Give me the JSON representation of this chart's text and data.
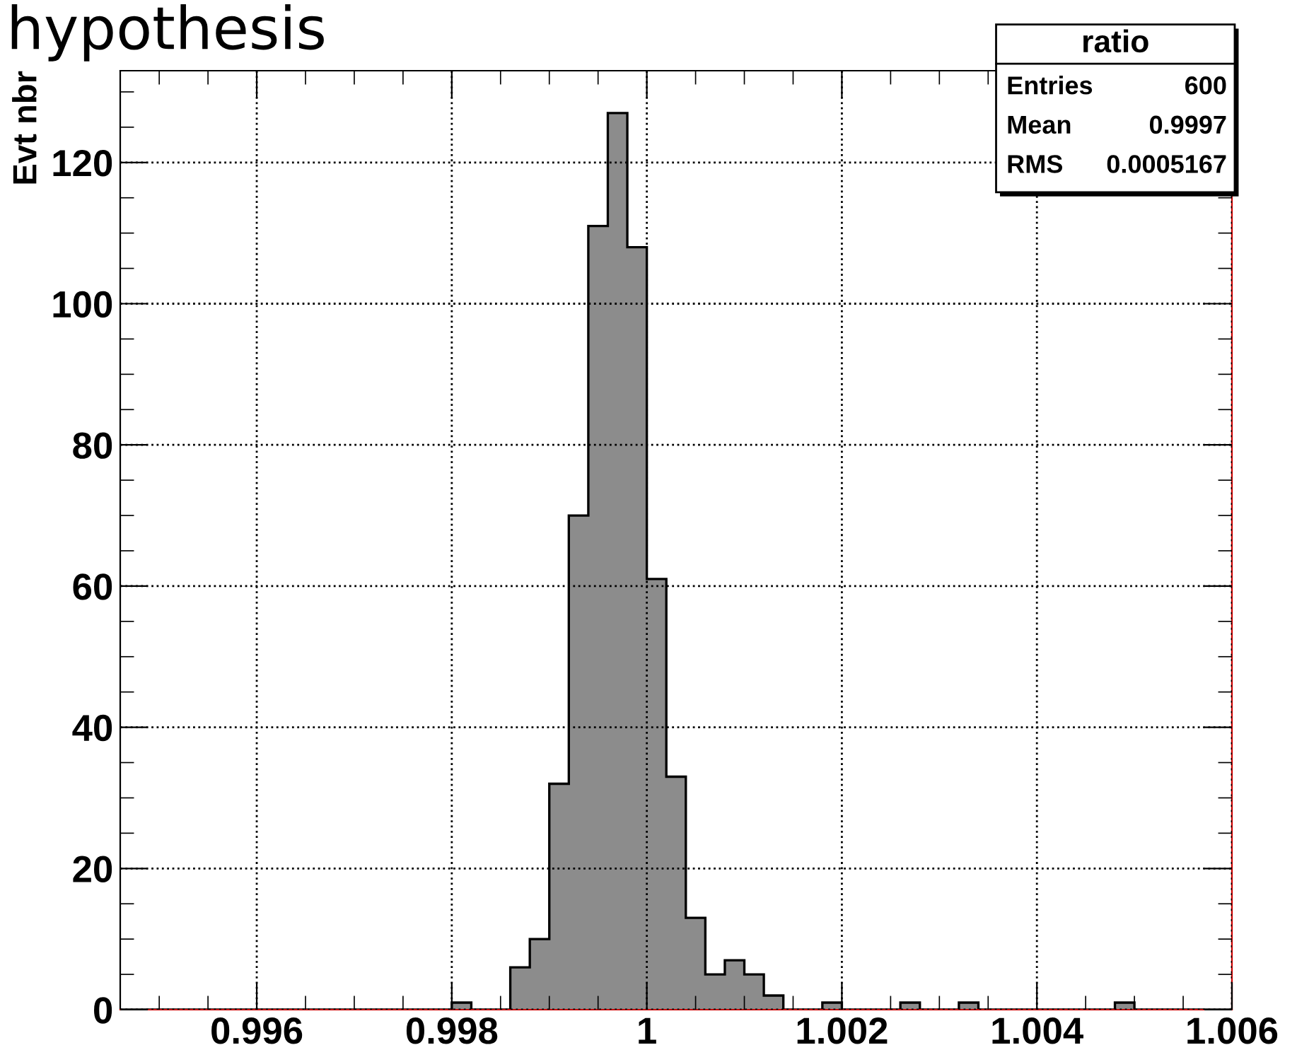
{
  "chart_data": {
    "type": "histogram",
    "title": "hypothesis",
    "ylabel": "Evt nbr",
    "bins": [
      0.9946,
      0.9948,
      0.995,
      0.9952,
      0.9954,
      0.9956,
      0.9958,
      0.996,
      0.9962,
      0.9964,
      0.9966,
      0.9968,
      0.997,
      0.9972,
      0.9974,
      0.9976,
      0.9978,
      0.998,
      0.9982,
      0.9984,
      0.9986,
      0.9988,
      0.999,
      0.9992,
      0.9994,
      0.9996,
      0.9998,
      1.0,
      1.0002,
      1.0004,
      1.0006,
      1.0008,
      1.001,
      1.0012,
      1.0014,
      1.0016,
      1.0018,
      1.002,
      1.0022,
      1.0024,
      1.0026,
      1.0028,
      1.003,
      1.0032,
      1.0034,
      1.0036,
      1.0038,
      1.004,
      1.0042,
      1.0044,
      1.0046,
      1.0048,
      1.005,
      1.0052,
      1.0054,
      1.0056,
      1.0058,
      1.006
    ],
    "values": [
      0,
      0,
      0,
      0,
      0,
      0,
      0,
      0,
      0,
      0,
      0,
      0,
      0,
      0,
      0,
      0,
      0,
      1,
      0,
      0,
      6,
      10,
      32,
      70,
      111,
      127,
      108,
      61,
      33,
      13,
      5,
      7,
      5,
      2,
      0,
      0,
      1,
      0,
      0,
      0,
      1,
      0,
      0,
      1,
      0,
      0,
      0,
      0,
      0,
      0,
      0,
      1,
      0,
      0,
      0,
      0,
      0
    ],
    "color": "#8c8c8c",
    "xlim": [
      0.9946,
      1.006
    ],
    "ylim": [
      0,
      133
    ],
    "xticks": [
      0.996,
      0.998,
      1,
      1.002,
      1.004,
      1.006
    ],
    "yticks": [
      0,
      20,
      40,
      60,
      80,
      100,
      120
    ],
    "grid": true,
    "annotations": [
      "ratio",
      "Entries",
      "600",
      "Mean",
      "0.9997",
      "RMS",
      "0.0005167"
    ]
  }
}
